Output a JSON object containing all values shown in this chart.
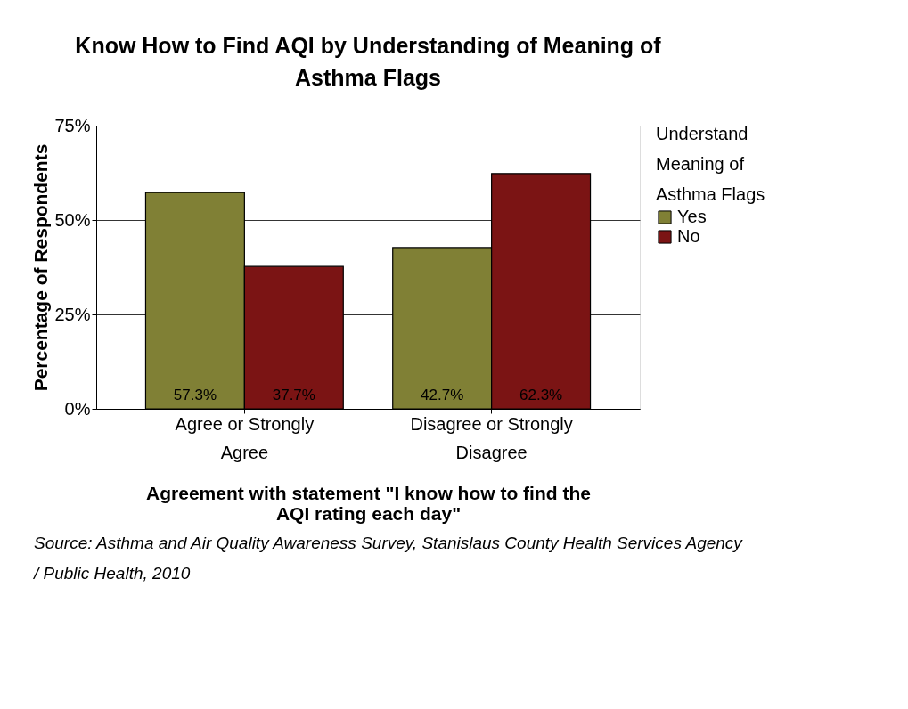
{
  "chart_data": {
    "type": "bar",
    "title": "Know How to Find AQI by Understanding of Meaning of  Asthma Flags",
    "xlabel": "Agreement with statement \"I know how to find the AQI rating each day\"",
    "ylabel": "Percentage of Respondents",
    "legend_title": "Understand Meaning of Asthma Flags",
    "categories": [
      "Agree or Strongly Agree",
      "Disagree or Strongly Disagree"
    ],
    "series": [
      {
        "name": "Yes",
        "color": "#808035",
        "values": [
          57.3,
          42.7
        ],
        "value_labels": [
          "57.3%",
          "42.7%"
        ]
      },
      {
        "name": "No",
        "color": "#7b1414",
        "values": [
          37.7,
          62.3
        ],
        "value_labels": [
          "37.7%",
          "62.3%"
        ]
      }
    ],
    "ylim": [
      0,
      75
    ],
    "yticks": [
      {
        "value": 0,
        "label": "0%"
      },
      {
        "value": 25,
        "label": "25%"
      },
      {
        "value": 50,
        "label": "50%"
      },
      {
        "value": 75,
        "label": "75%"
      }
    ],
    "grid": "y",
    "legend": "right",
    "annotations": [
      "Source:  Asthma and Air Quality Awareness Survey, Stanislaus County Health Services Agency / Public Health, 2010"
    ]
  }
}
